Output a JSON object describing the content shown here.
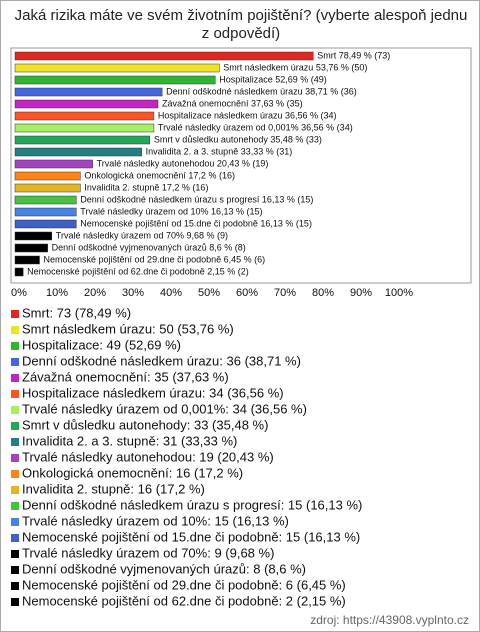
{
  "chart_data": {
    "type": "bar",
    "orientation": "horizontal",
    "title": "Jaká rizika máte ve svém životním pojištění? (vyberte alespoň jednu z odpovědí)",
    "values": [
      78.49,
      53.76,
      52.69,
      38.71,
      37.63,
      36.56,
      36.56,
      35.48,
      33.33,
      20.43,
      17.2,
      17.2,
      16.13,
      16.13,
      16.13,
      9.68,
      8.6,
      6.45,
      2.15
    ],
    "value_labels": [
      "Smrt 78,49 % (73)",
      "Smrt následkem úrazu 53,76 % (50)",
      "Hospitalizace 52,69 % (49)",
      "Denní odškodné následkem úrazu 38,71 % (36)",
      "Závažná onemocnění 37,63 % (35)",
      "Hospitalizace následkem úrazu 36,56 % (34)",
      "Trvalé následky úrazem od 0,001% 36,56 % (34)",
      "Smrt v důsledku autonehody 35,48 % (33)",
      "Invalidita 2. a 3. stupně 33,33 % (31)",
      "Trvalé následky autonehodou 20,43 % (19)",
      "Onkologická onemocnění 17,2 % (16)",
      "Invalidita 2. stupně 17,2 % (16)",
      "Denní odškodné následkem úrazu s progresí 16,13 % (15)",
      "Trvalé následky úrazem od 10% 16,13 % (15)",
      "Nemocenské pojištění od 15.dne či podobně 16,13 % (15)",
      "Trvalé následky úrazem od 70% 9,68 % (9)",
      "Denní odškodné vyjmenovaných úrazů 8,6 % (8)",
      "Nemocenské pojištění od 29.dne či podobně 6,45 % (6)",
      "Nemocenské pojištění od 62.dne či podobně 2,15 % (2)"
    ],
    "legend_labels": [
      "Smrt: 73 (78,49 %)",
      "Smrt následkem úrazu: 50 (53,76 %)",
      "Hospitalizace: 49 (52,69 %)",
      "Denní odškodné následkem úrazu: 36 (38,71 %)",
      "Závažná onemocnění: 35 (37,63 %)",
      "Hospitalizace následkem úrazu: 34 (36,56 %)",
      "Trvalé následky úrazem od 0,001%: 34 (36,56 %)",
      "Smrt v důsledku autonehody: 33 (35,48 %)",
      "Invalidita 2. a 3. stupně: 31 (33,33 %)",
      "Trvalé následky autonehodou: 19 (20,43 %)",
      "Onkologická onemocnění: 16 (17,2 %)",
      "Invalidita 2. stupně: 16 (17,2 %)",
      "Denní odškodné následkem úrazu s progresí: 15 (16,13 %)",
      "Trvalé následky úrazem od 10%: 15 (16,13 %)",
      "Nemocenské pojištění od 15.dne či podobně: 15 (16,13 %)",
      "Trvalé následky úrazem od 70%: 9 (9,68 %)",
      "Denní odškodné vyjmenovaných úrazů: 8 (8,6 %)",
      "Nemocenské pojištění od 29.dne či podobně: 6 (6,45 %)",
      "Nemocenské pojištění od 62.dne či podobně: 2 (2,15 %)"
    ],
    "colors": [
      "#e0261f",
      "#f2e227",
      "#2fb52f",
      "#4566e0",
      "#c523c8",
      "#ff5326",
      "#a6f064",
      "#25a75a",
      "#237f84",
      "#a442c4",
      "#ff8414",
      "#e4b422",
      "#45c242",
      "#4683e2",
      "#3f60c4",
      "#000000",
      "#000000",
      "#000000",
      "#000000"
    ],
    "xlim": [
      0,
      100
    ],
    "xticks": [
      {
        "value": 0,
        "label": "0%"
      },
      {
        "value": 10,
        "label": "10%"
      },
      {
        "value": 20,
        "label": "20%"
      },
      {
        "value": 30,
        "label": "30%"
      },
      {
        "value": 40,
        "label": "40%"
      },
      {
        "value": 50,
        "label": "50%"
      },
      {
        "value": 60,
        "label": "60%"
      },
      {
        "value": 70,
        "label": "70%"
      },
      {
        "value": 80,
        "label": "80%"
      },
      {
        "value": 90,
        "label": "90%"
      },
      {
        "value": 100,
        "label": "100%"
      }
    ],
    "grid": false,
    "source": "zdroj: https://43908.vyplnto.cz"
  }
}
